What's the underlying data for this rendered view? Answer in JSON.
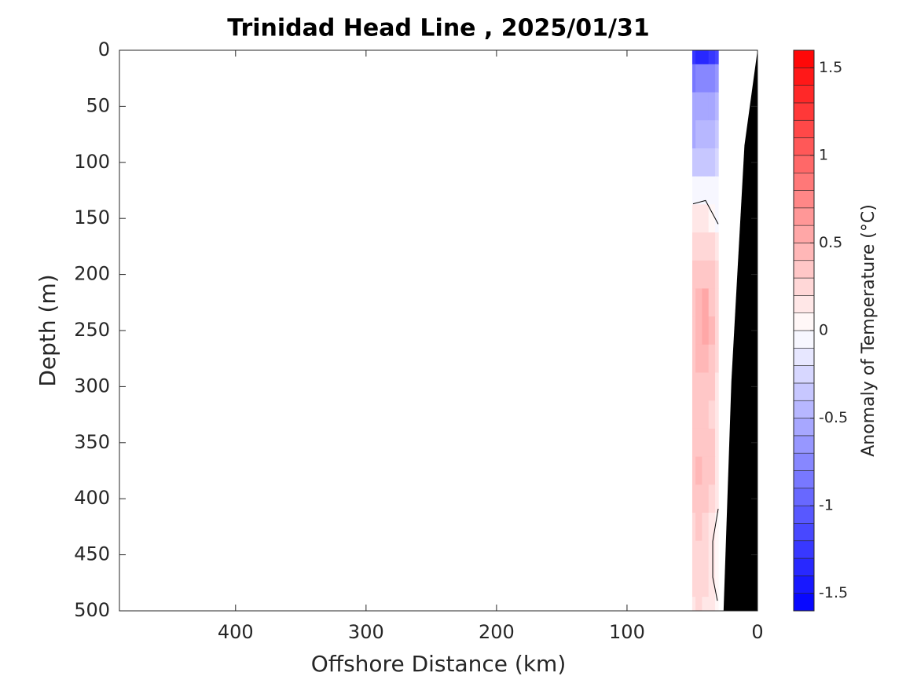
{
  "chart_data": {
    "type": "contour",
    "title": "Trinidad Head Line , 2025/01/31",
    "x_label": "Offshore Distance (km)",
    "y_label": "Depth (m)",
    "colorbar_label": "Anomaly of Temperature (°C)",
    "xlim": [
      489,
      0
    ],
    "xticks": [
      0,
      100,
      200,
      300,
      400
    ],
    "ylim": [
      0,
      500
    ],
    "yticks": [
      0,
      50,
      100,
      150,
      200,
      250,
      300,
      350,
      400,
      450,
      500
    ],
    "clim": [
      -1.6,
      1.6
    ],
    "cticks": [
      -1.5,
      -1,
      -0.5,
      0,
      0.5,
      1,
      1.5
    ],
    "level_step": 0.1,
    "colormap": {
      "low": "#0000ff",
      "mid": "#ffffff",
      "high": "#ff0000"
    },
    "x": [
      50,
      45,
      40,
      35,
      30
    ],
    "depth": [
      0,
      25,
      50,
      75,
      100,
      125,
      150,
      175,
      200,
      225,
      250,
      275,
      300,
      325,
      350,
      375,
      400,
      425,
      450,
      475,
      500
    ],
    "values": [
      [
        -1.3,
        -1.4,
        -1.4,
        -1.3,
        -1.2
      ],
      [
        -0.9,
        -0.8,
        -0.8,
        -0.8,
        -0.7
      ],
      [
        -0.6,
        -0.6,
        -0.6,
        -0.6,
        -0.5
      ],
      [
        -0.6,
        -0.5,
        -0.5,
        -0.5,
        -0.4
      ],
      [
        -0.4,
        -0.4,
        -0.4,
        -0.4,
        -0.3
      ],
      [
        -0.1,
        -0.1,
        -0.1,
        -0.1,
        -0.1
      ],
      [
        0.1,
        0.1,
        0.1,
        0.05,
        -0.05
      ],
      [
        0.2,
        0.2,
        0.2,
        0.2,
        0.1
      ],
      [
        0.3,
        0.3,
        0.3,
        0.3,
        0.2
      ],
      [
        0.35,
        0.4,
        0.5,
        0.35,
        0.2
      ],
      [
        0.35,
        0.45,
        0.55,
        0.4,
        0.2
      ],
      [
        0.35,
        0.4,
        0.45,
        0.35,
        0.2
      ],
      [
        0.3,
        0.35,
        0.35,
        0.3,
        0.15
      ],
      [
        0.3,
        0.35,
        0.3,
        0.25,
        0.15
      ],
      [
        0.3,
        0.35,
        0.35,
        0.3,
        0.15
      ],
      [
        0.35,
        0.4,
        0.35,
        0.3,
        0.15
      ],
      [
        0.3,
        0.35,
        0.3,
        0.2,
        0.1
      ],
      [
        0.25,
        0.3,
        0.25,
        0.15,
        0.05
      ],
      [
        0.2,
        0.25,
        0.2,
        0.1,
        0.0
      ],
      [
        0.2,
        0.25,
        0.2,
        0.1,
        0.0
      ],
      [
        0.15,
        0.2,
        0.15,
        0.1,
        0.0
      ]
    ],
    "zero_contours": [
      {
        "x": [
          49.4,
          39.8,
          30.1
        ],
        "depth": [
          137,
          134,
          155
        ]
      },
      {
        "x": [
          30.1,
          34.3,
          34.3,
          30.7
        ],
        "depth": [
          409,
          438,
          470,
          491
        ]
      }
    ],
    "bottom": {
      "color": "#000000",
      "x": [
        0,
        10,
        20,
        26
      ],
      "depth": [
        0,
        85,
        295,
        500
      ]
    }
  }
}
